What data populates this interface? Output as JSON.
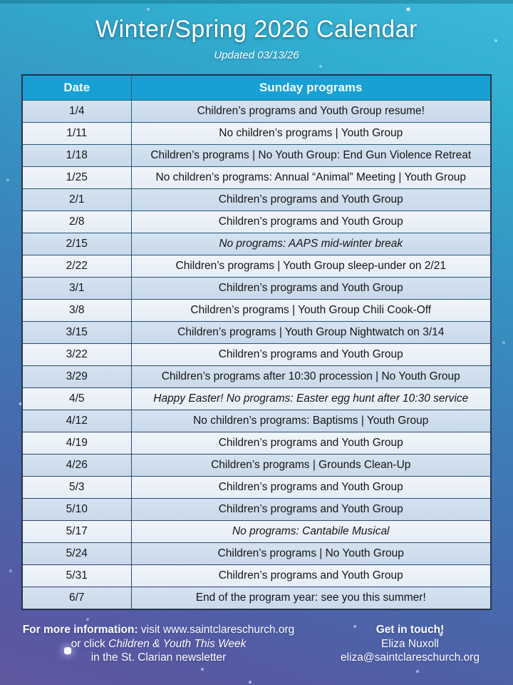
{
  "page": {
    "title": "Winter/Spring 2026 Calendar",
    "updated": "Updated 03/13/26"
  },
  "table": {
    "headers": {
      "date": "Date",
      "programs": "Sunday programs"
    },
    "rows": [
      {
        "date": "1/4",
        "program": "Children’s programs and Youth Group resume!",
        "italic": false
      },
      {
        "date": "1/11",
        "program": "No children’s programs | Youth Group",
        "italic": false
      },
      {
        "date": "1/18",
        "program": "Children’s programs | No Youth Group: End Gun Violence Retreat",
        "italic": false
      },
      {
        "date": "1/25",
        "program": "No children’s programs: Annual “Animal” Meeting | Youth Group",
        "italic": false
      },
      {
        "date": "2/1",
        "program": "Children’s programs and Youth Group",
        "italic": false
      },
      {
        "date": "2/8",
        "program": "Children’s programs and Youth Group",
        "italic": false
      },
      {
        "date": "2/15",
        "program": "No programs: AAPS mid-winter break",
        "italic": true
      },
      {
        "date": "2/22",
        "program": "Children’s programs | Youth Group sleep-under on 2/21",
        "italic": false
      },
      {
        "date": "3/1",
        "program": "Children’s programs and Youth Group",
        "italic": false
      },
      {
        "date": "3/8",
        "program": "Children’s programs | Youth Group Chili Cook-Off",
        "italic": false
      },
      {
        "date": "3/15",
        "program": "Children’s programs | Youth Group Nightwatch on 3/14",
        "italic": false
      },
      {
        "date": "3/22",
        "program": "Children’s programs and Youth Group",
        "italic": false
      },
      {
        "date": "3/29",
        "program": "Children’s programs after 10:30 procession | No Youth Group",
        "italic": false
      },
      {
        "date": "4/5",
        "program": "Happy Easter! No programs: Easter egg hunt after 10:30 service",
        "italic": true
      },
      {
        "date": "4/12",
        "program": "No children’s programs: Baptisms | Youth Group",
        "italic": false
      },
      {
        "date": "4/19",
        "program": "Children’s programs and Youth Group",
        "italic": false
      },
      {
        "date": "4/26",
        "program": "Children’s programs | Grounds Clean-Up",
        "italic": false
      },
      {
        "date": "5/3",
        "program": "Children’s programs and Youth Group",
        "italic": false
      },
      {
        "date": "5/10",
        "program": "Children’s programs and Youth Group",
        "italic": false
      },
      {
        "date": "5/17",
        "program": "No programs: Cantabile Musical",
        "italic": true
      },
      {
        "date": "5/24",
        "program": "Children’s programs | No Youth Group",
        "italic": false
      },
      {
        "date": "5/31",
        "program": "Children’s programs and Youth Group",
        "italic": false
      },
      {
        "date": "6/7",
        "program": "End of the program year: see you this summer!",
        "italic": false
      }
    ]
  },
  "footer": {
    "info_bold": "For more information:",
    "info_text": " visit www.saintclareschurch.org",
    "click_prefix": "or click ",
    "click_italic": "Children & Youth This Week",
    "info_line3": "in the St. Clarian newsletter",
    "contact_heading": "Get in touch!",
    "contact_name": "Eliza Nuxoll",
    "contact_email": "eliza@saintclareschurch.org"
  },
  "colors": {
    "background_top": "#3db8dd",
    "background_bottom": "#5f57a0",
    "header_bg": "#18a0d4",
    "row_dark": "#cddcec",
    "row_light": "#ecf2f8",
    "table_border": "#273349",
    "text_dark": "#161616",
    "text_light": "#ffffff"
  }
}
